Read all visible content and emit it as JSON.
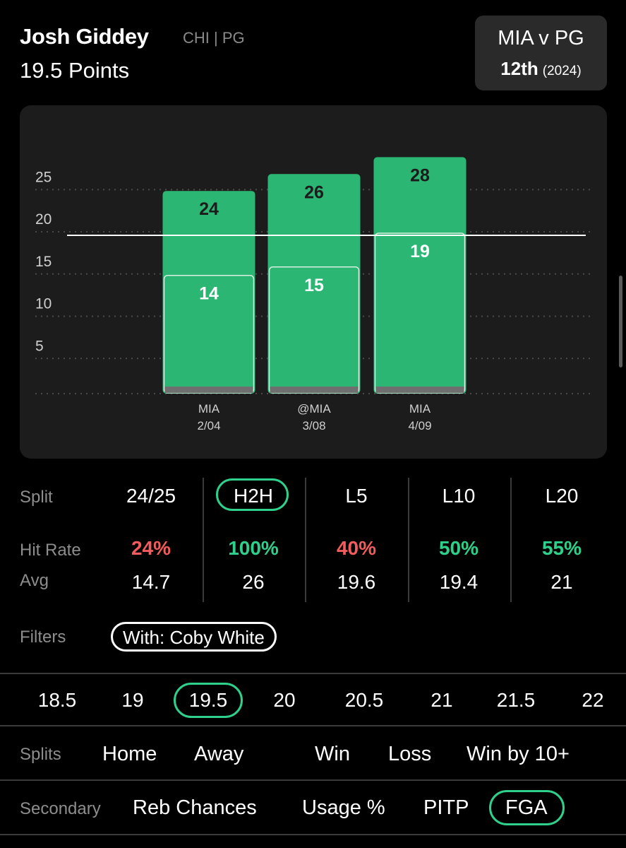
{
  "header": {
    "player_name": "Josh Giddey",
    "team_pos": "CHI | PG",
    "prop_line": "19.5 Points",
    "matchup": {
      "title": "MIA v PG",
      "rank": "12th",
      "year": "(2024)"
    }
  },
  "chart_data": {
    "type": "bar",
    "categories": [
      "MIA 2/04",
      "@MIA 3/08",
      "MIA 4/09"
    ],
    "category_lines": [
      [
        "MIA",
        "2/04"
      ],
      [
        "@MIA",
        "3/08"
      ],
      [
        "MIA",
        "4/09"
      ]
    ],
    "series": [
      {
        "values": [
          24,
          26,
          28
        ]
      },
      {
        "values": [
          14,
          15,
          19
        ]
      }
    ],
    "yticks": [
      5,
      10,
      15,
      20,
      25
    ],
    "ylim": [
      0,
      27.5
    ],
    "threshold": 19.5,
    "colors": {
      "bar": "#2bb673",
      "inner_border": "#d8efe3",
      "base": "#6f6f6f",
      "threshold": "#ffffff"
    }
  },
  "splits": {
    "labels": {
      "split": "Split",
      "hit_rate": "Hit Rate",
      "avg": "Avg"
    },
    "columns": [
      {
        "name": "24/25",
        "hit_rate": "24%",
        "hit_color": "red",
        "avg": "14.7"
      },
      {
        "name": "H2H",
        "hit_rate": "100%",
        "hit_color": "green",
        "avg": "26"
      },
      {
        "name": "L5",
        "hit_rate": "40%",
        "hit_color": "red",
        "avg": "19.6"
      },
      {
        "name": "L10",
        "hit_rate": "50%",
        "hit_color": "green",
        "avg": "19.4"
      },
      {
        "name": "L20",
        "hit_rate": "55%",
        "hit_color": "green",
        "avg": "21"
      }
    ],
    "selected": "H2H"
  },
  "filters": {
    "label": "Filters",
    "chip": "With: Coby White"
  },
  "lines": {
    "options": [
      "18.5",
      "19",
      "19.5",
      "20",
      "20.5",
      "21",
      "21.5",
      "22"
    ],
    "selected": "19.5"
  },
  "split_filters": {
    "label": "Splits",
    "options": [
      "Home",
      "Away",
      "Win",
      "Loss",
      "Win by 10+"
    ]
  },
  "secondary": {
    "label": "Secondary",
    "options": [
      "Reb Chances",
      "Usage %",
      "PITP",
      "FGA"
    ],
    "selected": "FGA"
  },
  "colors": {
    "accent": "#2fd08b",
    "miss": "#f25c5c"
  }
}
